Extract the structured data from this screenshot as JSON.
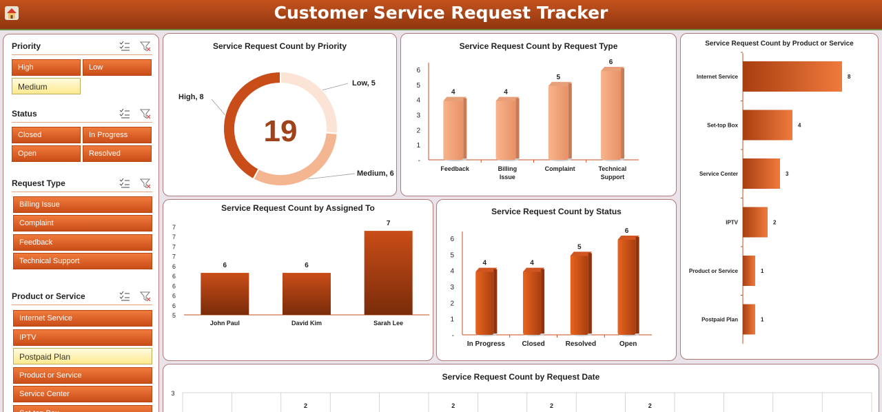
{
  "header": {
    "title": "Customer Service Request Tracker"
  },
  "slicers": {
    "priority": {
      "label": "Priority",
      "items": [
        "High",
        "Low",
        "Medium"
      ]
    },
    "status": {
      "label": "Status",
      "items": [
        "Closed",
        "In Progress",
        "Open",
        "Resolved"
      ]
    },
    "request_type": {
      "label": "Request Type",
      "items": [
        "Billing Issue",
        "Complaint",
        "Feedback",
        "Technical Support"
      ]
    },
    "product": {
      "label": "Product or Service",
      "items": [
        "Internet Service",
        "IPTV",
        "Postpaid Plan",
        "Product or Service",
        "Service Center",
        "Set-top Box"
      ]
    }
  },
  "colors": {
    "accent": "#c94d18",
    "light": "#f1a87e",
    "donut_light": "#fbe4d5"
  },
  "chart_data": [
    {
      "type": "pie",
      "title": "Service Request Count by Priority",
      "categories": [
        "Low",
        "Medium",
        "High"
      ],
      "values": [
        5,
        6,
        8
      ],
      "data_labels": [
        "Low, 5",
        "Medium, 6",
        "High, 8"
      ],
      "center_total": "19"
    },
    {
      "type": "bar",
      "title": "Service Request Count by Request Type",
      "categories": [
        "Feedback",
        "Billing Issue",
        "Complaint",
        "Technical Support"
      ],
      "values": [
        4,
        4,
        5,
        6
      ],
      "y_ticks": [
        "6",
        "5",
        "4",
        "3",
        "2",
        "1",
        "-"
      ]
    },
    {
      "type": "bar",
      "title": "Service Request Count by Product or Service",
      "orientation": "horizontal",
      "categories": [
        "Internet Service",
        "Set-top Box",
        "Service Center",
        "IPTV",
        "Product or Service",
        "Postpaid Plan"
      ],
      "values": [
        8,
        4,
        3,
        2,
        1,
        1
      ]
    },
    {
      "type": "bar",
      "title": "Service Request Count by Assigned To",
      "categories": [
        "John Paul",
        "David Kim",
        "Sarah Lee"
      ],
      "values": [
        6,
        6,
        7
      ],
      "y_ticks": [
        "7",
        "7",
        "7",
        "7",
        "6",
        "6",
        "6",
        "6",
        "6",
        "5"
      ],
      "ylim": [
        5,
        7
      ]
    },
    {
      "type": "bar",
      "title": "Service Request Count by Status",
      "categories": [
        "In Progress",
        "Closed",
        "Resolved",
        "Open"
      ],
      "values": [
        4,
        4,
        5,
        6
      ],
      "y_ticks": [
        "6",
        "5",
        "4",
        "3",
        "2",
        "1",
        "-"
      ]
    },
    {
      "type": "bar",
      "title": "Service Request Count by Request Date",
      "y_ticks": [
        "3"
      ],
      "visible_values": [
        "2",
        "2",
        "2",
        "2"
      ]
    }
  ]
}
